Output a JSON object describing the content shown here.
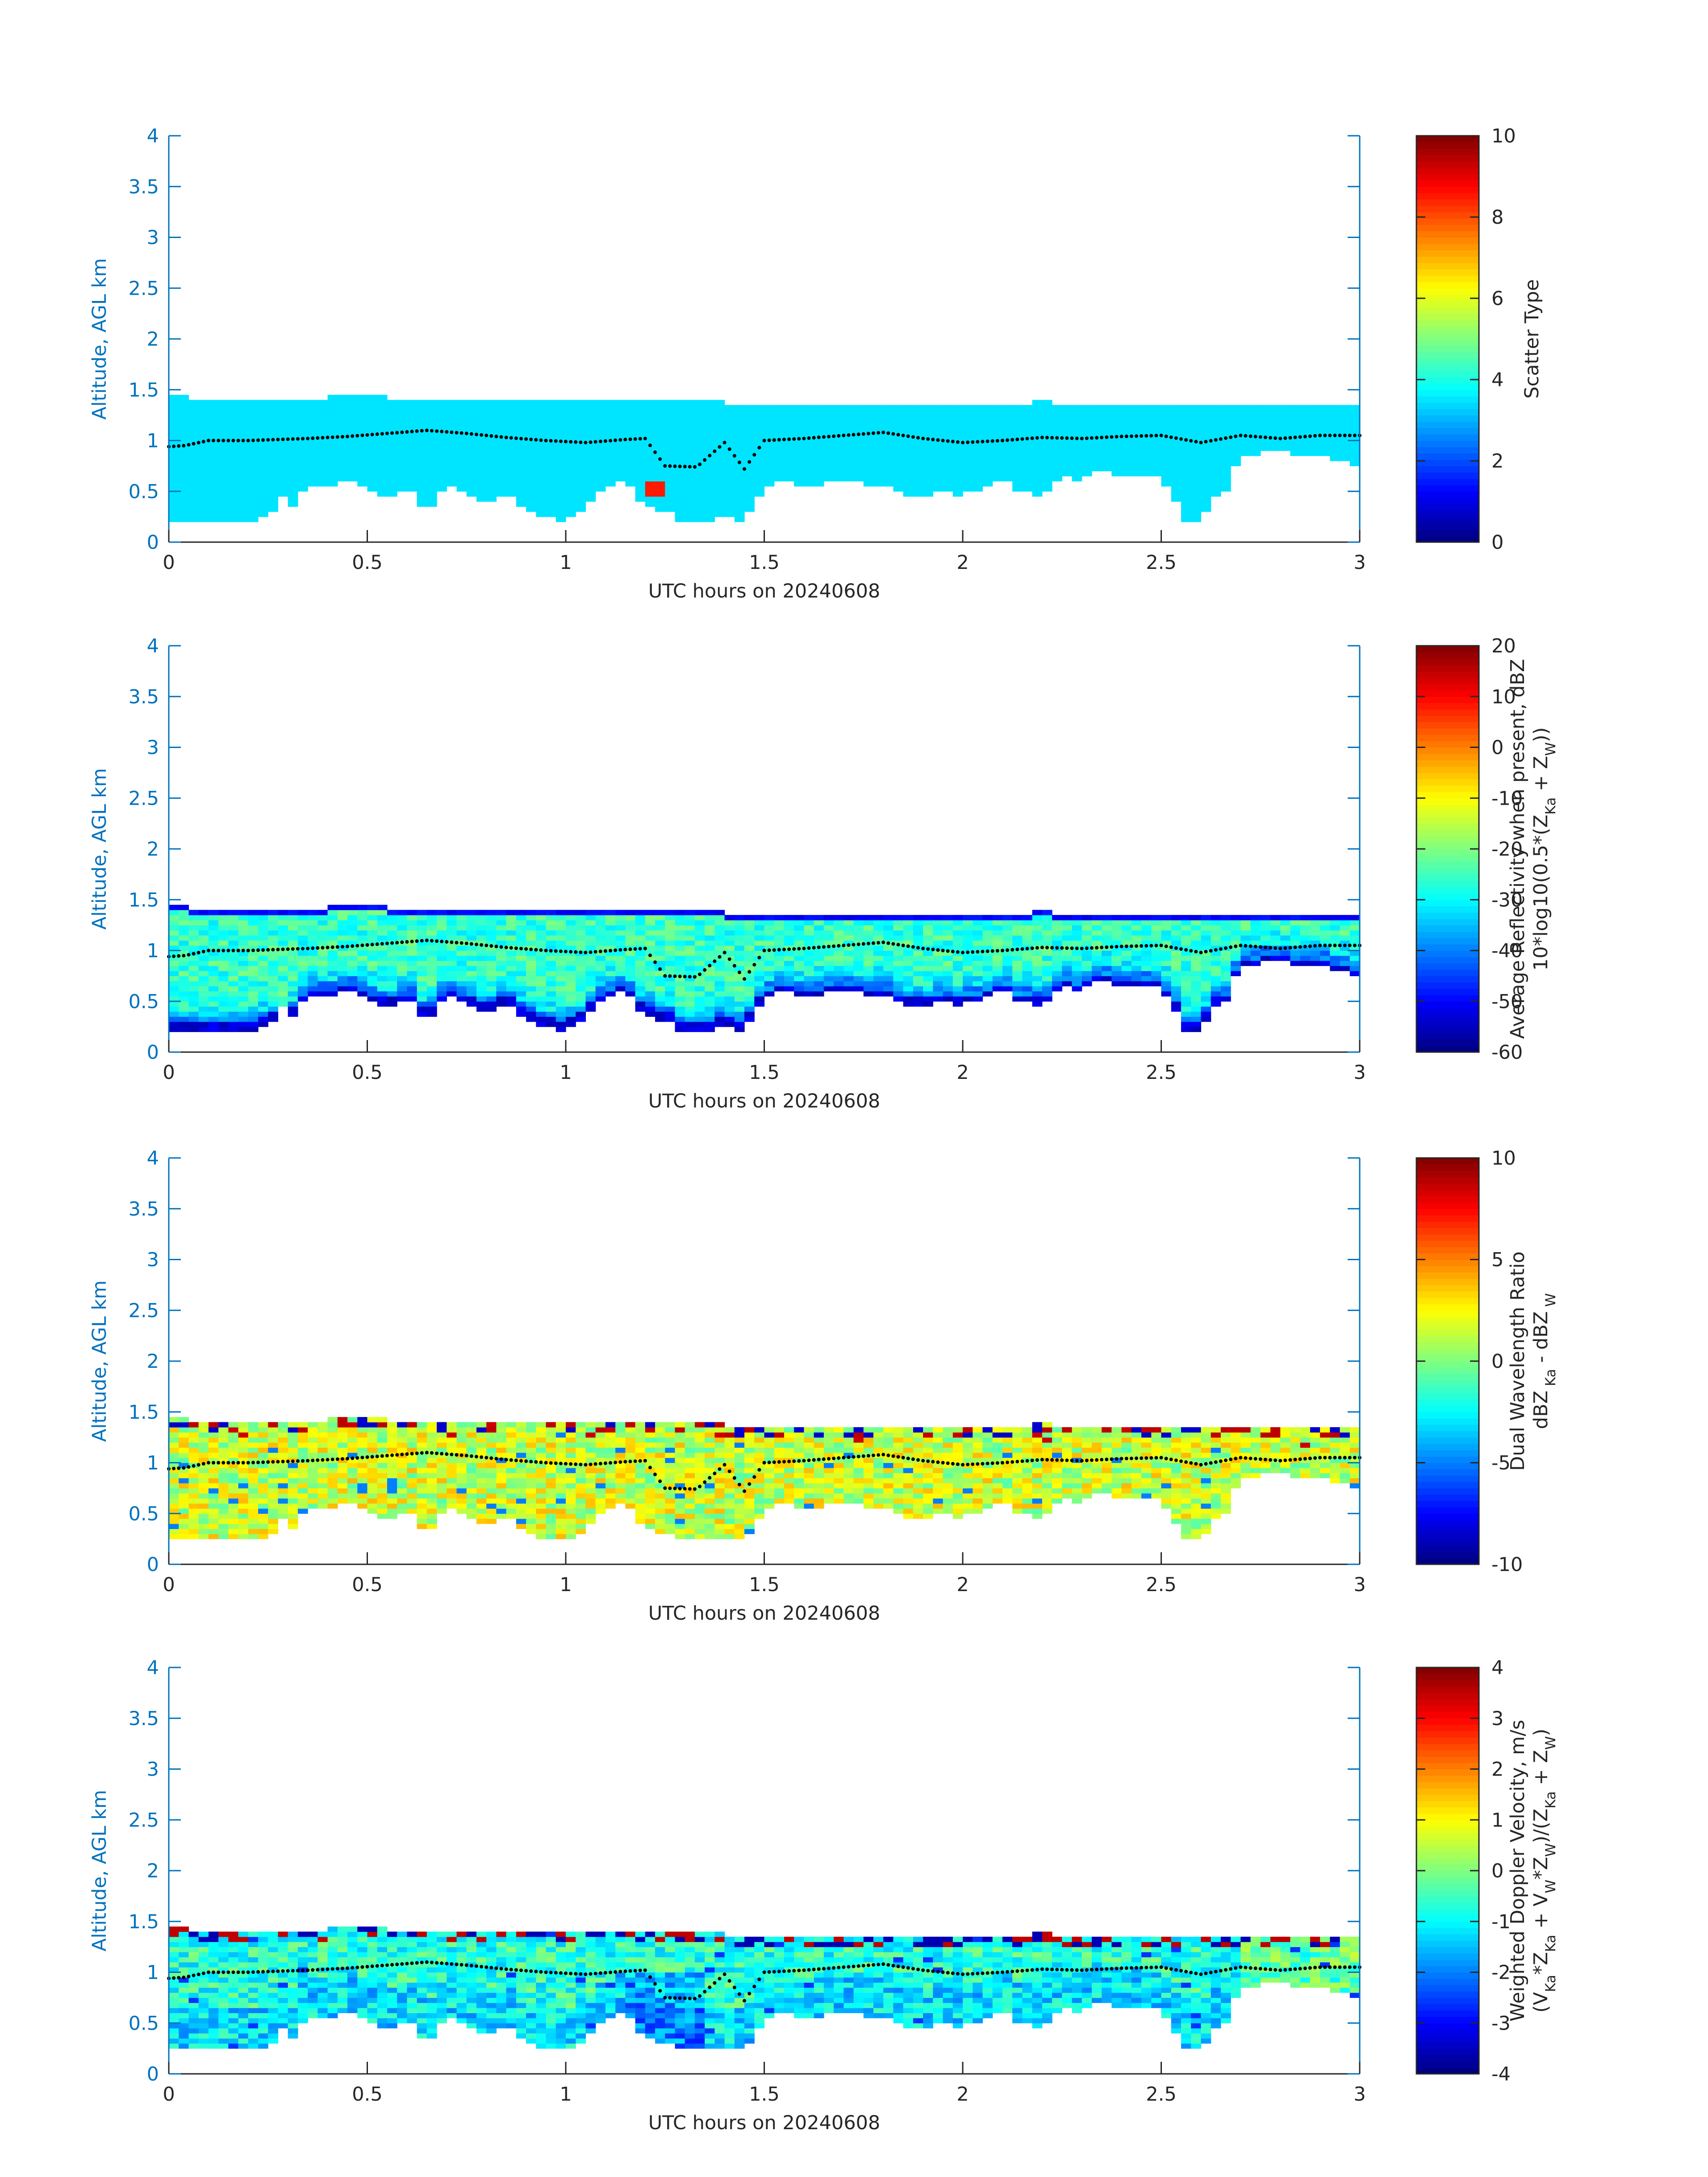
{
  "figure": {
    "date": "20240608",
    "colors": {
      "axis": "#0072bd",
      "text": "#262626",
      "dots": "#000000",
      "colormap": "jet"
    }
  },
  "chart_data": [
    {
      "type": "heatmap",
      "id": "scatter",
      "xlabel": "UTC hours on 20240608",
      "ylabel": "Altitude, AGL km",
      "xlim": [
        0,
        3
      ],
      "ylim": [
        0,
        4
      ],
      "xticks": [
        0,
        0.5,
        1,
        1.5,
        2,
        2.5,
        3
      ],
      "xtick_labels": [
        "0",
        "0.5",
        "1",
        "1.5",
        "2",
        "2.5",
        "3"
      ],
      "yticks": [
        0,
        0.5,
        1,
        1.5,
        2,
        2.5,
        3,
        3.5,
        4
      ],
      "ytick_labels": [
        "0",
        "0.5",
        "1",
        "1.5",
        "2",
        "2.5",
        "3",
        "3.5",
        "4"
      ],
      "colorbar": {
        "label": [
          "Scatter Type"
        ],
        "clim": [
          0,
          10
        ],
        "ticks": [
          0,
          2,
          4,
          6,
          8,
          10
        ],
        "tick_labels": [
          "0",
          "2",
          "4",
          "6",
          "8",
          "10"
        ]
      },
      "field": {
        "kind": "scatter",
        "base_value": 3.5,
        "outlier_value": 8.5,
        "outlier": [
          1.22,
          0.5
        ]
      }
    },
    {
      "type": "heatmap",
      "id": "reflectivity",
      "xlabel": "UTC hours on 20240608",
      "ylabel": "Altitude, AGL km",
      "xlim": [
        0,
        3
      ],
      "ylim": [
        0,
        4
      ],
      "xticks": [
        0,
        0.5,
        1,
        1.5,
        2,
        2.5,
        3
      ],
      "xtick_labels": [
        "0",
        "0.5",
        "1",
        "1.5",
        "2",
        "2.5",
        "3"
      ],
      "yticks": [
        0,
        0.5,
        1,
        1.5,
        2,
        2.5,
        3,
        3.5,
        4
      ],
      "ytick_labels": [
        "0",
        "0.5",
        "1",
        "1.5",
        "2",
        "2.5",
        "3",
        "3.5",
        "4"
      ],
      "colorbar": {
        "label": [
          "Average Reflectivity when present, dBZ",
          "10*log10(0.5*(Z_{Ka} + Z_{W}))"
        ],
        "clim": [
          -60,
          20
        ],
        "ticks": [
          -60,
          -50,
          -40,
          -30,
          -20,
          -10,
          0,
          10,
          20
        ],
        "tick_labels": [
          "-60",
          "-50",
          "-40",
          "-30",
          "-20",
          "-10",
          "0",
          "10",
          "20"
        ]
      },
      "field": {
        "kind": "reflectivity",
        "top_value": -52,
        "core_value": -22,
        "edge_value": -56
      }
    },
    {
      "type": "heatmap",
      "id": "dwr",
      "xlabel": "UTC hours on 20240608",
      "ylabel": "Altitude, AGL km",
      "xlim": [
        0,
        3
      ],
      "ylim": [
        0,
        4
      ],
      "xticks": [
        0,
        0.5,
        1,
        1.5,
        2,
        2.5,
        3
      ],
      "xtick_labels": [
        "0",
        "0.5",
        "1",
        "1.5",
        "2",
        "2.5",
        "3"
      ],
      "yticks": [
        0,
        0.5,
        1,
        1.5,
        2,
        2.5,
        3,
        3.5,
        4
      ],
      "ytick_labels": [
        "0",
        "0.5",
        "1",
        "1.5",
        "2",
        "2.5",
        "3",
        "3.5",
        "4"
      ],
      "colorbar": {
        "label": [
          "Dual Wavelength Ratio",
          "dBZ_{ Ka} - dBZ_{ W}"
        ],
        "clim": [
          -10,
          10
        ],
        "ticks": [
          -10,
          -5,
          0,
          5,
          10
        ],
        "tick_labels": [
          "-10",
          "-5",
          "0",
          "5",
          "10"
        ]
      },
      "field": {
        "kind": "dwr",
        "mean_value": 1.6
      }
    },
    {
      "type": "heatmap",
      "id": "doppler",
      "xlabel": "UTC hours on 20240608",
      "ylabel": "Altitude, AGL km",
      "xlim": [
        0,
        3
      ],
      "ylim": [
        0,
        4
      ],
      "xticks": [
        0,
        0.5,
        1,
        1.5,
        2,
        2.5,
        3
      ],
      "xtick_labels": [
        "0",
        "0.5",
        "1",
        "1.5",
        "2",
        "2.5",
        "3"
      ],
      "yticks": [
        0,
        0.5,
        1,
        1.5,
        2,
        2.5,
        3,
        3.5,
        4
      ],
      "ytick_labels": [
        "0",
        "0.5",
        "1",
        "1.5",
        "2",
        "2.5",
        "3",
        "3.5",
        "4"
      ],
      "colorbar": {
        "label": [
          "Weighted Doppler Velocity, m/s",
          "(V_{Ka}*Z_{Ka} + V_{W}*Z_{W})/(Z_{Ka} + Z_{W})"
        ],
        "clim": [
          -4,
          4
        ],
        "ticks": [
          -4,
          -3,
          -2,
          -1,
          0,
          1,
          2,
          3,
          4
        ],
        "tick_labels": [
          "-4",
          "-3",
          "-2",
          "-1",
          "0",
          "1",
          "2",
          "3",
          "4"
        ]
      },
      "field": {
        "kind": "doppler",
        "mean_value": -0.7
      }
    }
  ],
  "cloud": {
    "x_bin_hours": 0.025,
    "y_bin_km": 0.05,
    "top_km": [
      [
        0.0,
        1.43
      ],
      [
        0.05,
        1.43
      ],
      [
        0.1,
        1.38
      ],
      [
        0.35,
        1.38
      ],
      [
        0.4,
        1.43
      ],
      [
        0.55,
        1.43
      ],
      [
        0.6,
        1.38
      ],
      [
        1.25,
        1.38
      ],
      [
        1.3,
        1.43
      ],
      [
        1.4,
        1.38
      ],
      [
        1.45,
        1.33
      ],
      [
        1.8,
        1.33
      ],
      [
        2.0,
        1.33
      ],
      [
        2.2,
        1.38
      ],
      [
        2.45,
        1.33
      ],
      [
        2.9,
        1.33
      ],
      [
        3.0,
        1.33
      ]
    ],
    "base_km": [
      [
        0.0,
        0.18
      ],
      [
        0.05,
        0.18
      ],
      [
        0.1,
        0.18
      ],
      [
        0.2,
        0.18
      ],
      [
        0.23,
        0.25
      ],
      [
        0.27,
        0.3
      ],
      [
        0.3,
        0.2
      ],
      [
        0.33,
        0.5
      ],
      [
        0.38,
        0.55
      ],
      [
        0.45,
        0.6
      ],
      [
        0.5,
        0.55
      ],
      [
        0.55,
        0.4
      ],
      [
        0.6,
        0.55
      ],
      [
        0.65,
        0.3
      ],
      [
        0.7,
        0.55
      ],
      [
        0.75,
        0.5
      ],
      [
        0.8,
        0.35
      ],
      [
        0.85,
        0.5
      ],
      [
        0.9,
        0.3
      ],
      [
        0.95,
        0.25
      ],
      [
        1.0,
        0.2
      ],
      [
        1.05,
        0.35
      ],
      [
        1.1,
        0.55
      ],
      [
        1.15,
        0.6
      ],
      [
        1.2,
        0.35
      ],
      [
        1.25,
        0.3
      ],
      [
        1.3,
        0.2
      ],
      [
        1.35,
        0.2
      ],
      [
        1.4,
        0.25
      ],
      [
        1.45,
        0.2
      ],
      [
        1.5,
        0.55
      ],
      [
        1.55,
        0.6
      ],
      [
        1.6,
        0.55
      ],
      [
        1.7,
        0.6
      ],
      [
        1.8,
        0.55
      ],
      [
        1.85,
        0.5
      ],
      [
        1.9,
        0.4
      ],
      [
        1.95,
        0.55
      ],
      [
        2.0,
        0.45
      ],
      [
        2.05,
        0.55
      ],
      [
        2.1,
        0.6
      ],
      [
        2.15,
        0.5
      ],
      [
        2.2,
        0.45
      ],
      [
        2.25,
        0.65
      ],
      [
        2.3,
        0.6
      ],
      [
        2.35,
        0.75
      ],
      [
        2.4,
        0.6
      ],
      [
        2.45,
        0.7
      ],
      [
        2.5,
        0.6
      ],
      [
        2.53,
        0.5
      ],
      [
        2.55,
        0.2
      ],
      [
        2.6,
        0.2
      ],
      [
        2.63,
        0.4
      ],
      [
        2.66,
        0.5
      ],
      [
        2.7,
        0.85
      ],
      [
        2.8,
        0.9
      ],
      [
        2.85,
        0.85
      ],
      [
        2.9,
        0.85
      ],
      [
        2.95,
        0.8
      ],
      [
        3.0,
        0.75
      ]
    ],
    "gaps": [
      [
        0.28,
        0.3,
        0.1,
        0.4
      ],
      [
        2.94,
        2.96,
        0.5,
        0.95
      ]
    ]
  },
  "dots": {
    "x_step_hours": 0.0125,
    "trace_km": [
      [
        0.0,
        0.94
      ],
      [
        0.04,
        0.95
      ],
      [
        0.1,
        1.0
      ],
      [
        0.2,
        1.0
      ],
      [
        0.35,
        1.02
      ],
      [
        0.45,
        1.04
      ],
      [
        0.55,
        1.07
      ],
      [
        0.65,
        1.1
      ],
      [
        0.75,
        1.07
      ],
      [
        0.85,
        1.03
      ],
      [
        0.95,
        1.0
      ],
      [
        1.05,
        0.98
      ],
      [
        1.15,
        1.01
      ],
      [
        1.2,
        1.02
      ],
      [
        1.25,
        0.75
      ],
      [
        1.33,
        0.74
      ],
      [
        1.4,
        0.98
      ],
      [
        1.45,
        0.72
      ],
      [
        1.5,
        1.0
      ],
      [
        1.6,
        1.02
      ],
      [
        1.7,
        1.05
      ],
      [
        1.8,
        1.08
      ],
      [
        1.9,
        1.02
      ],
      [
        2.0,
        0.98
      ],
      [
        2.1,
        1.0
      ],
      [
        2.2,
        1.03
      ],
      [
        2.3,
        1.02
      ],
      [
        2.4,
        1.04
      ],
      [
        2.5,
        1.05
      ],
      [
        2.6,
        0.98
      ],
      [
        2.7,
        1.05
      ],
      [
        2.8,
        1.02
      ],
      [
        2.9,
        1.05
      ],
      [
        3.0,
        1.05
      ]
    ]
  }
}
